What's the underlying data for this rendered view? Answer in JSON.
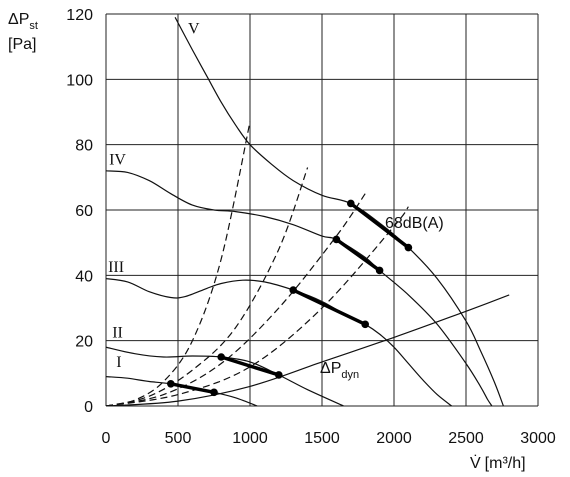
{
  "chart_data": {
    "type": "line",
    "title": "",
    "ylabel": {
      "main": "ΔP",
      "sub": "st",
      "unit": "[Pa]"
    },
    "xlabel": {
      "main": "V̇",
      "unit": "[m³/h]"
    },
    "xlim": [
      0,
      3000
    ],
    "ylim": [
      0,
      120
    ],
    "xticks": [
      0,
      500,
      1000,
      1500,
      2000,
      2500,
      3000
    ],
    "yticks": [
      0,
      20,
      40,
      60,
      80,
      100,
      120
    ],
    "grid": true,
    "series": [
      {
        "name": "I",
        "style": "solid",
        "points": [
          [
            0,
            9
          ],
          [
            150,
            8.5
          ],
          [
            300,
            7.5
          ],
          [
            450,
            6.8
          ],
          [
            600,
            5.5
          ],
          [
            750,
            4.2
          ],
          [
            900,
            2.5
          ],
          [
            1050,
            0
          ]
        ]
      },
      {
        "name": "II",
        "style": "solid",
        "points": [
          [
            0,
            18
          ],
          [
            200,
            16
          ],
          [
            400,
            15
          ],
          [
            600,
            15.3
          ],
          [
            800,
            15
          ],
          [
            1000,
            13.5
          ],
          [
            1200,
            9.5
          ],
          [
            1400,
            5
          ],
          [
            1650,
            0
          ]
        ]
      },
      {
        "name": "III",
        "style": "solid",
        "points": [
          [
            0,
            39
          ],
          [
            150,
            38
          ],
          [
            300,
            35
          ],
          [
            450,
            33.2
          ],
          [
            550,
            33.5
          ],
          [
            700,
            36
          ],
          [
            800,
            37.5
          ],
          [
            950,
            38.5
          ],
          [
            1100,
            38
          ],
          [
            1300,
            35.5
          ],
          [
            1500,
            32
          ],
          [
            1700,
            27
          ],
          [
            1800,
            25
          ],
          [
            1900,
            22
          ],
          [
            2000,
            18
          ],
          [
            2100,
            13
          ],
          [
            2200,
            8
          ],
          [
            2300,
            3.5
          ],
          [
            2400,
            0
          ]
        ]
      },
      {
        "name": "IV",
        "style": "solid",
        "points": [
          [
            0,
            72
          ],
          [
            150,
            71.5
          ],
          [
            300,
            69
          ],
          [
            450,
            65
          ],
          [
            600,
            61.5
          ],
          [
            750,
            60
          ],
          [
            900,
            59.5
          ],
          [
            1100,
            58
          ],
          [
            1300,
            55.5
          ],
          [
            1500,
            52
          ],
          [
            1600,
            51
          ],
          [
            1800,
            45.5
          ],
          [
            1900,
            41.5
          ],
          [
            2100,
            34
          ],
          [
            2300,
            25
          ],
          [
            2500,
            13
          ],
          [
            2600,
            6
          ],
          [
            2650,
            2
          ],
          [
            2680,
            0
          ]
        ]
      },
      {
        "name": "V",
        "style": "solid",
        "points": [
          [
            480,
            119
          ],
          [
            600,
            109
          ],
          [
            700,
            101
          ],
          [
            800,
            93
          ],
          [
            900,
            86
          ],
          [
            1000,
            80
          ],
          [
            1150,
            74
          ],
          [
            1300,
            69
          ],
          [
            1500,
            64.5
          ],
          [
            1700,
            62
          ],
          [
            1900,
            56
          ],
          [
            2100,
            48.5
          ],
          [
            2300,
            39
          ],
          [
            2500,
            26
          ],
          [
            2600,
            17
          ],
          [
            2700,
            7
          ],
          [
            2760,
            0
          ]
        ]
      },
      {
        "name": "ΔPdyn",
        "style": "solid",
        "points": [
          [
            0,
            0
          ],
          [
            500,
            1.5
          ],
          [
            1000,
            6
          ],
          [
            1500,
            13.5
          ],
          [
            2000,
            21
          ],
          [
            2500,
            29
          ],
          [
            2800,
            34
          ]
        ]
      },
      {
        "name": "",
        "style": "dashed",
        "points": [
          [
            0,
            0
          ],
          [
            200,
            1.8
          ],
          [
            400,
            7.5
          ],
          [
            600,
            20
          ],
          [
            800,
            45
          ],
          [
            1000,
            87
          ]
        ]
      },
      {
        "name": "",
        "style": "dashed",
        "points": [
          [
            0,
            0
          ],
          [
            300,
            3
          ],
          [
            600,
            11
          ],
          [
            900,
            24
          ],
          [
            1200,
            48
          ],
          [
            1400,
            73
          ]
        ]
      },
      {
        "name": "",
        "style": "dashed",
        "points": [
          [
            0,
            0
          ],
          [
            400,
            3.5
          ],
          [
            800,
            13
          ],
          [
            1200,
            30
          ],
          [
            1600,
            52
          ],
          [
            1800,
            65
          ]
        ]
      },
      {
        "name": "",
        "style": "dashed",
        "points": [
          [
            0,
            0
          ],
          [
            500,
            3.5
          ],
          [
            1000,
            12
          ],
          [
            1500,
            30
          ],
          [
            2000,
            55
          ],
          [
            2100,
            61
          ]
        ]
      }
    ],
    "operating_segments": [
      {
        "points": [
          [
            450,
            6.8
          ],
          [
            750,
            4.2
          ]
        ]
      },
      {
        "points": [
          [
            800,
            15
          ],
          [
            1200,
            9.5
          ]
        ]
      },
      {
        "points": [
          [
            1300,
            35.5
          ],
          [
            1800,
            25
          ]
        ]
      },
      {
        "points": [
          [
            1600,
            51
          ],
          [
            1900,
            41.5
          ]
        ]
      },
      {
        "points": [
          [
            1700,
            62
          ],
          [
            2100,
            48.5
          ]
        ]
      }
    ],
    "curve_labels": [
      {
        "text": "I",
        "x": 90,
        "y": 12
      },
      {
        "text": "II",
        "x": 80,
        "y": 21
      },
      {
        "text": "III",
        "x": 70,
        "y": 41
      },
      {
        "text": "IV",
        "x": 80,
        "y": 74
      },
      {
        "text": "V",
        "x": 610,
        "y": 114
      }
    ],
    "annotations": [
      {
        "text": "68dB(A)",
        "x": 2000,
        "y": 57
      },
      {
        "text": "ΔP",
        "sub": "dyn",
        "x": 1500,
        "y": 10
      }
    ]
  }
}
